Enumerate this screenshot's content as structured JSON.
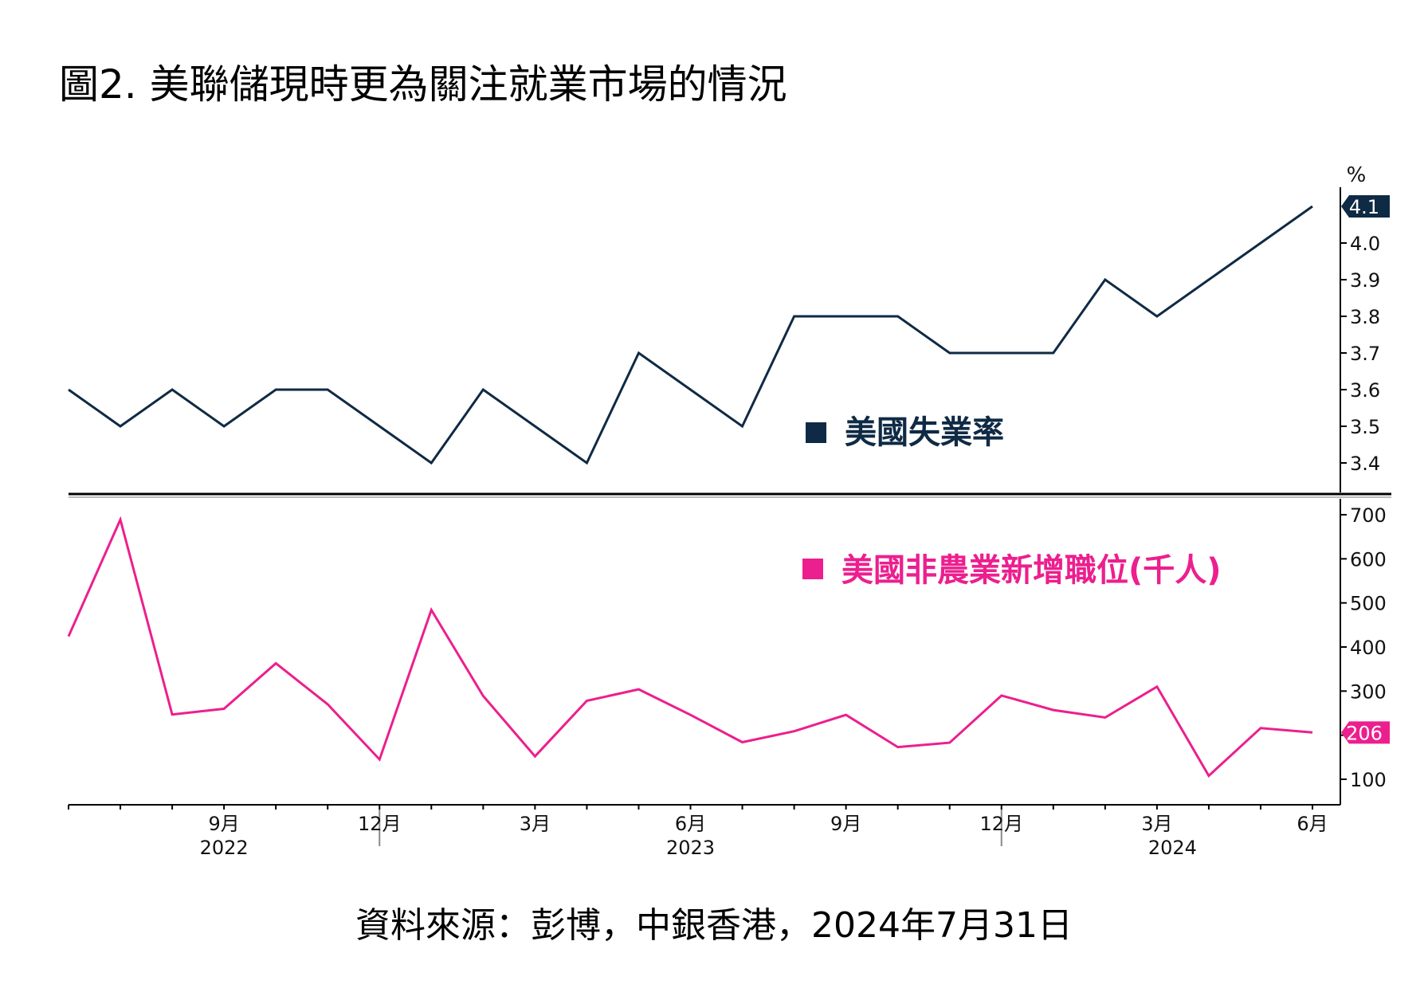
{
  "title": "圖2. 美聯儲現時更為關注就業市場的情況",
  "source": "資料來源：彭博，中銀香港，2024年7月31日",
  "colors": {
    "unemployment": "#0f2a44",
    "payrolls": "#ec1f8e",
    "axis": "#000000"
  },
  "chart_data": [
    {
      "type": "line",
      "panel": "top",
      "unit_label": "%",
      "ylim": [
        3.35,
        4.15
      ],
      "y_ticks": [
        "3.4",
        "3.5",
        "3.6",
        "3.7",
        "3.8",
        "3.9",
        "4.0"
      ],
      "legend_placement": "bottom-right",
      "series": [
        {
          "name": "美國失業率",
          "color": "#0f2a44",
          "last_value_label": "4.1",
          "values": [
            3.6,
            3.5,
            3.6,
            3.5,
            3.6,
            3.6,
            3.5,
            3.4,
            3.6,
            3.5,
            3.4,
            3.7,
            3.6,
            3.5,
            3.8,
            3.8,
            3.8,
            3.7,
            3.7,
            3.7,
            3.9,
            3.8,
            3.9,
            4.0,
            4.1
          ]
        }
      ],
      "grid": false
    },
    {
      "type": "line",
      "panel": "bottom",
      "ylim": [
        50,
        730
      ],
      "y_ticks": [
        "100",
        "200",
        "300",
        "400",
        "500",
        "600",
        "700"
      ],
      "legend_placement": "top-right",
      "series": [
        {
          "name": "美國非農業新增職位(千人)",
          "color": "#ec1f8e",
          "last_value_label": "206",
          "values": [
            424,
            689,
            247,
            260,
            363,
            270,
            145,
            484,
            289,
            152,
            278,
            304,
            246,
            184,
            209,
            246,
            173,
            183,
            290,
            257,
            240,
            310,
            108,
            216,
            206
          ]
        }
      ],
      "grid": false
    }
  ],
  "x_axis": {
    "month_labels": [
      {
        "index": 3,
        "label": "9月"
      },
      {
        "index": 6,
        "label": "12月"
      },
      {
        "index": 9,
        "label": "3月"
      },
      {
        "index": 12,
        "label": "6月"
      },
      {
        "index": 15,
        "label": "9月"
      },
      {
        "index": 18,
        "label": "12月"
      },
      {
        "index": 21,
        "label": "3月"
      },
      {
        "index": 24,
        "label": "6月"
      }
    ],
    "year_labels": [
      {
        "index": 3,
        "label": "2022"
      },
      {
        "index": 12,
        "label": "2023"
      },
      {
        "index": 21.3,
        "label": "2024"
      }
    ]
  }
}
